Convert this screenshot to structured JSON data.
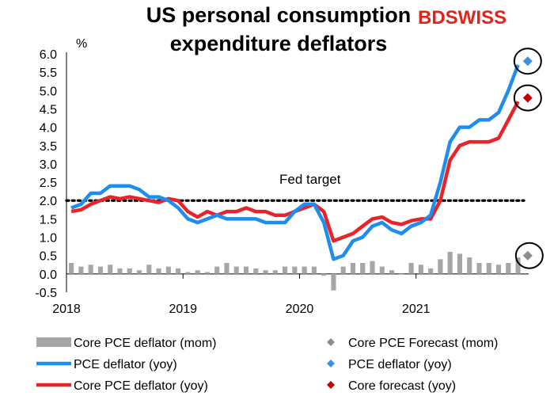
{
  "chart_data": {
    "type": "line",
    "title_line1": "US personal consumption",
    "title_line2": "expenditure deflators",
    "ylabel": "%",
    "ylim": [
      -0.5,
      6.0
    ],
    "y_ticks": [
      "6.0",
      "5.5",
      "5.0",
      "4.5",
      "4.0",
      "3.5",
      "3.0",
      "2.5",
      "2.0",
      "1.5",
      "1.0",
      "0.5",
      "0.0",
      "-0.5"
    ],
    "x_ticks": [
      {
        "label": "2018",
        "month": 0
      },
      {
        "label": "2019",
        "month": 12
      },
      {
        "label": "2020",
        "month": 24
      },
      {
        "label": "2021",
        "month": 36
      }
    ],
    "annotation": {
      "text": "Fed target",
      "value": 2.0
    },
    "brand": {
      "part1": "BD",
      "part2": "SWISS"
    },
    "colors": {
      "pce": "#1f8ded",
      "core": "#e8232a",
      "mom": "#a6a6a6",
      "forecast_mom": "#8c8c8c",
      "forecast_pce": "#3d8fe0",
      "forecast_core": "#c00000",
      "target": "#000000",
      "logo": "#e2231a"
    },
    "legend": [
      {
        "label": "Core PCE deflator (mom)",
        "kind": "bar",
        "color": "#a6a6a6"
      },
      {
        "label": "Core PCE Forecast (mom)",
        "kind": "diamond",
        "color": "#8c8c8c"
      },
      {
        "label": "PCE deflator (yoy)",
        "kind": "line",
        "color": "#1f8ded"
      },
      {
        "label": "PCE deflator (yoy)",
        "kind": "diamond",
        "color": "#3d8fe0"
      },
      {
        "label": "Core PCE deflator (yoy)",
        "kind": "line",
        "color": "#e8232a"
      },
      {
        "label": "Core forecast (yoy)",
        "kind": "diamond",
        "color": "#c00000"
      }
    ],
    "series": [
      {
        "name": "PCE deflator (yoy)",
        "start_month": 0,
        "values": [
          1.8,
          1.9,
          2.2,
          2.2,
          2.4,
          2.4,
          2.4,
          2.3,
          2.1,
          2.1,
          2.0,
          1.8,
          1.5,
          1.4,
          1.5,
          1.6,
          1.5,
          1.5,
          1.5,
          1.5,
          1.4,
          1.4,
          1.4,
          1.7,
          1.9,
          1.9,
          1.4,
          0.4,
          0.5,
          0.9,
          1.0,
          1.3,
          1.4,
          1.2,
          1.1,
          1.3,
          1.4,
          1.6,
          2.5,
          3.6,
          4.0,
          4.0,
          4.2,
          4.2,
          4.4,
          5.0,
          5.7
        ]
      },
      {
        "name": "Core PCE deflator (yoy)",
        "start_month": 0,
        "values": [
          1.7,
          1.75,
          1.9,
          2.0,
          2.1,
          2.05,
          2.1,
          2.05,
          2.0,
          1.95,
          2.05,
          2.0,
          1.7,
          1.55,
          1.7,
          1.6,
          1.7,
          1.7,
          1.8,
          1.7,
          1.7,
          1.6,
          1.6,
          1.7,
          1.8,
          1.9,
          1.7,
          0.9,
          1.0,
          1.1,
          1.3,
          1.5,
          1.55,
          1.4,
          1.35,
          1.45,
          1.5,
          1.5,
          2.0,
          3.1,
          3.5,
          3.6,
          3.6,
          3.6,
          3.7,
          4.2,
          4.7
        ]
      },
      {
        "name": "Core PCE deflator (mom)",
        "start_month": 0,
        "values": [
          0.3,
          0.2,
          0.25,
          0.2,
          0.25,
          0.15,
          0.15,
          0.1,
          0.25,
          0.15,
          0.2,
          0.15,
          0.05,
          0.1,
          0.05,
          0.2,
          0.3,
          0.2,
          0.2,
          0.15,
          0.1,
          0.1,
          0.2,
          0.2,
          0.2,
          0.2,
          -0.05,
          -0.45,
          0.2,
          0.3,
          0.3,
          0.35,
          0.2,
          0.1,
          0.0,
          0.3,
          0.25,
          0.15,
          0.4,
          0.6,
          0.55,
          0.45,
          0.3,
          0.3,
          0.25,
          0.3,
          0.45
        ]
      },
      {
        "name": "Forecasts",
        "month": 47,
        "points": [
          {
            "series": "PCE deflator (yoy)",
            "value": 5.8
          },
          {
            "series": "Core forecast (yoy)",
            "value": 4.8
          },
          {
            "series": "Core PCE Forecast (mom)",
            "value": 0.5
          }
        ]
      }
    ]
  }
}
